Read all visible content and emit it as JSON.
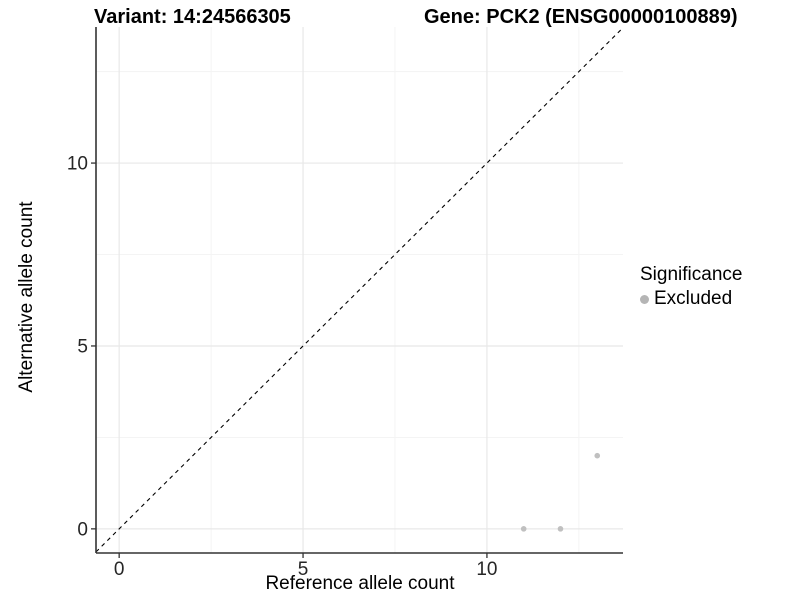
{
  "titles": {
    "variant": "Variant: 14:24566305",
    "gene": "Gene: PCK2 (ENSG00000100889)"
  },
  "axes": {
    "x_label": "Reference allele count",
    "y_label": "Alternative allele count"
  },
  "legend": {
    "title": "Significance",
    "items": [
      {
        "label": "Excluded",
        "color": "#b5b5b5"
      }
    ]
  },
  "colors": {
    "point": "#c0c0c0",
    "axis_line": "#333333",
    "tick_mark": "#333333",
    "tick_label": "#262626",
    "grid_major": "#e8e8e8",
    "grid_minor": "#f3f3f3",
    "identity_line": "#000000",
    "background": "#ffffff"
  },
  "chart_data": {
    "type": "scatter",
    "title": "Variant: 14:24566305  Gene: PCK2 (ENSG00000100889)",
    "xlabel": "Reference allele count",
    "ylabel": "Alternative allele count",
    "series": [
      {
        "name": "Excluded",
        "color": "#c0c0c0",
        "points": [
          {
            "x": 11,
            "y": 0
          },
          {
            "x": 12,
            "y": 0
          },
          {
            "x": 13,
            "y": 2
          }
        ]
      }
    ],
    "x_ticks": [
      0,
      5,
      10
    ],
    "y_ticks": [
      0,
      5,
      10
    ],
    "x_minor_ticks": [
      2.5,
      7.5,
      12.5
    ],
    "y_minor_ticks": [
      2.5,
      7.5,
      12.5
    ],
    "xlim": [
      -0.63,
      13.7
    ],
    "ylim": [
      -0.66,
      13.72
    ],
    "grid": true,
    "reference_line": {
      "type": "identity",
      "equation": "y = x",
      "style": "dashed",
      "color": "#000000"
    },
    "legend_position": "right",
    "legend_title": "Significance"
  }
}
